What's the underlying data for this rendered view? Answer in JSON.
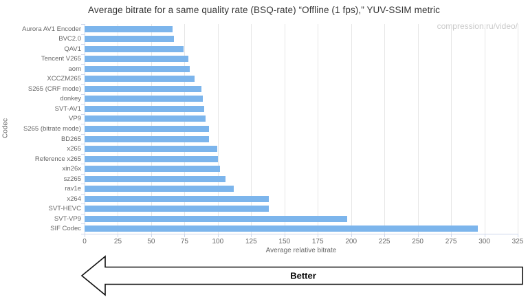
{
  "title": "Average bitrate for a same quality rate (BSQ-rate) “Offline (1 fps),” YUV-SSIM metric",
  "watermark": "compression.ru/video/",
  "arrow_label": "Better",
  "chart_data": {
    "type": "bar",
    "orientation": "horizontal",
    "title": "Average bitrate for a same quality rate (BSQ-rate) “Offline (1 fps),” YUV-SSIM metric",
    "xlabel": "Average relative bitrate",
    "ylabel": "Codec",
    "xlim": [
      0,
      325
    ],
    "x_ticks": [
      0,
      25,
      50,
      75,
      100,
      125,
      150,
      175,
      200,
      225,
      250,
      275,
      300,
      325
    ],
    "grid": true,
    "legend": false,
    "categories": [
      "Aurora AV1 Encoder",
      "BVC2.0",
      "QAV1",
      "Tencent V265",
      "aom",
      "XCCZM265",
      "S265 (CRF mode)",
      "donkey",
      "SVT-AV1",
      "VP9",
      "S265 (bitrate mode)",
      "BD265",
      "x265",
      "Reference x265",
      "xin26x",
      "sz265",
      "rav1e",
      "x264",
      "SVT-HEVC",
      "SVT-VP9",
      "SIF Codec"
    ],
    "values": [
      66,
      67,
      74.5,
      78,
      79,
      82.5,
      87.5,
      88.5,
      90,
      91,
      93.5,
      93.5,
      99.5,
      100,
      101.5,
      105.5,
      112,
      138,
      138.5,
      197,
      295
    ],
    "annotation": "Better (lower is better, left-pointing arrow)",
    "colors": {
      "bar": "#7cb5ec",
      "grid": "#e6e6e6",
      "axis_line": "#ccd6eb",
      "tick_label": "#666666",
      "axis_title": "#666666",
      "title": "#333333",
      "watermark": "#c9c9c9",
      "arrow_outline": "#111111"
    }
  }
}
